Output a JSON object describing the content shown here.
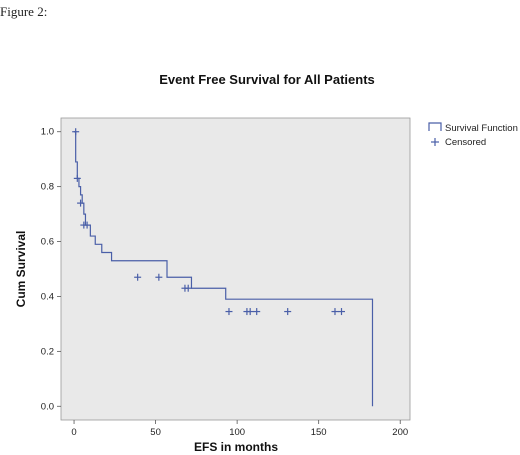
{
  "figure_label": "Figure 2:",
  "chart_data": {
    "type": "line",
    "title": "Event Free Survival for All Patients",
    "xlabel": "EFS in months",
    "ylabel": "Cum Survival",
    "xlim": [
      -8,
      206
    ],
    "ylim": [
      -0.05,
      1.05
    ],
    "xticks": [
      0,
      50,
      100,
      150,
      200
    ],
    "yticks": [
      0.0,
      0.2,
      0.4,
      0.6,
      0.8,
      1.0
    ],
    "xtick_labels": [
      "0",
      "50",
      "100",
      "150",
      "200"
    ],
    "ytick_labels": [
      "0.0",
      "0.2",
      "0.4",
      "0.6",
      "0.8",
      "1.0"
    ],
    "grid": false,
    "background_color": "#e9e9e9",
    "line_color": "#4a5fa8",
    "legend_position": "right",
    "legend": [
      {
        "label": "Survival Function",
        "symbol": "step"
      },
      {
        "label": "Censored",
        "symbol": "plus"
      }
    ],
    "series": [
      {
        "name": "Survival Function",
        "x": [
          0,
          1,
          2,
          3,
          4,
          5,
          6,
          7,
          10,
          13,
          17,
          23,
          57,
          72,
          93,
          183,
          183
        ],
        "y": [
          1.0,
          0.89,
          0.83,
          0.8,
          0.77,
          0.74,
          0.7,
          0.66,
          0.62,
          0.59,
          0.56,
          0.53,
          0.47,
          0.43,
          0.39,
          0.345,
          0.0
        ]
      }
    ],
    "censored": {
      "name": "Censored",
      "x": [
        1,
        2,
        4,
        6,
        8,
        39,
        52,
        68,
        70,
        95,
        106,
        108,
        112,
        131,
        160,
        164
      ],
      "y": [
        1.0,
        0.83,
        0.74,
        0.66,
        0.66,
        0.47,
        0.47,
        0.43,
        0.43,
        0.345,
        0.345,
        0.345,
        0.345,
        0.345,
        0.345,
        0.345
      ]
    }
  }
}
